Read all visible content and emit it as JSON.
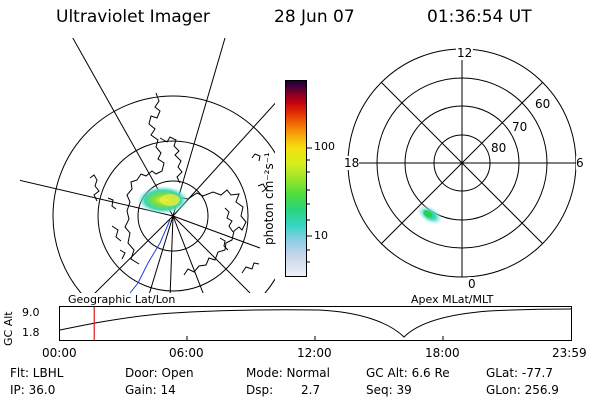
{
  "header": {
    "title": "Ultraviolet Imager",
    "date": "28 Jun 07",
    "time": "01:36:54 UT"
  },
  "colorbar": {
    "label": "photon cm⁻²s⁻¹",
    "tick_high": "100",
    "tick_low": "10",
    "colors": [
      "#e8ecf4",
      "#c8d6ea",
      "#a8c4e4",
      "#7fd0e6",
      "#35d6c2",
      "#29d47e",
      "#4fdd3c",
      "#9be62a",
      "#d9ee1c",
      "#f5dd10",
      "#f7a90a",
      "#f26a06",
      "#e12a04",
      "#c4000e",
      "#8a0022",
      "#450038",
      "#1b0033"
    ]
  },
  "polar_plot": {
    "labels": {
      "top": "12",
      "left": "18",
      "right": "6",
      "bottom": "0"
    },
    "lat_labels": [
      "60",
      "70",
      "80"
    ]
  },
  "timeline": {
    "ylabel": "GC Alt",
    "ytick_high": "9.0",
    "ytick_low": "1.8",
    "left_title": "Geographic Lat/Lon",
    "right_title": "Apex MLat/MLT",
    "xticks": [
      "00:00",
      "06:00",
      "12:00",
      "18:00",
      "23:59"
    ],
    "current_time_fraction": 0.067
  },
  "info": {
    "flt": "Flt: LBHL",
    "ip": "IP: 36.0",
    "door": "Door: Open",
    "gain": "Gain: 14",
    "mode": "Mode: Normal",
    "dsp_label": "Dsp:",
    "dsp_value": "2.7",
    "gc_alt": "GC Alt: 6.6 Re",
    "seq": "Seq: 39",
    "glat": "GLat: -77.7",
    "glon": "GLon: 256.9"
  }
}
